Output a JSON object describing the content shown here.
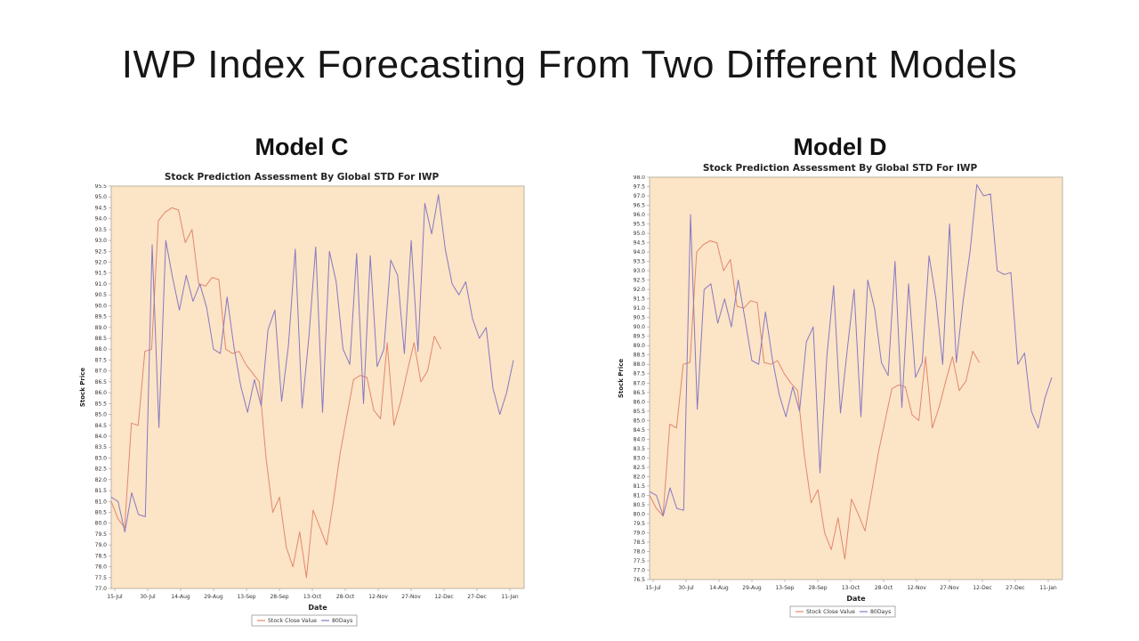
{
  "slide": {
    "title": "IWP Index Forecasting From Two Different Models"
  },
  "colors": {
    "plot_bg": "#fce4c6",
    "plot_border": "#bdb3a3",
    "close_line": "#e1876e",
    "pred_line": "#8778c3",
    "axis_text": "#333333"
  },
  "chart_data": [
    {
      "type": "line",
      "model_label": "Model C",
      "title": "Stock Prediction Assessment By Global STD For IWP",
      "xlabel": "Date",
      "ylabel": "Stock Price",
      "ylim": [
        77.0,
        95.5
      ],
      "ytick_step": 0.5,
      "grid": false,
      "legend_position": "bottom",
      "x_ticks": [
        "15-Jul",
        "30-Jul",
        "14-Aug",
        "29-Aug",
        "13-Sep",
        "28-Sep",
        "13-Oct",
        "28-Oct",
        "12-Nov",
        "27-Nov",
        "12-Dec",
        "27-Dec",
        "11-Jan"
      ],
      "legend": [
        {
          "label": "Stock Close Value",
          "color": "#e1876e"
        },
        {
          "label": "80Days",
          "color": "#8778c3"
        }
      ],
      "series": [
        {
          "name": "Stock Close Value",
          "color": "#e1876e",
          "end_frac": 0.82,
          "values": [
            81.0,
            80.2,
            79.8,
            84.6,
            84.5,
            87.9,
            88.0,
            93.9,
            94.3,
            94.5,
            94.4,
            92.9,
            93.5,
            91.0,
            90.9,
            91.3,
            91.2,
            88.0,
            87.8,
            87.9,
            87.3,
            86.9,
            86.5,
            83.0,
            80.5,
            81.2,
            78.9,
            78.0,
            79.6,
            77.5,
            80.6,
            79.8,
            79.0,
            81.0,
            83.2,
            84.9,
            86.6,
            86.8,
            86.7,
            85.2,
            84.8,
            88.3,
            84.5,
            85.6,
            87.0,
            88.3,
            86.5,
            87.0,
            88.6,
            88.0
          ]
        },
        {
          "name": "80Days",
          "color": "#8778c3",
          "end_frac": 1.0,
          "values": [
            81.2,
            81.0,
            79.6,
            81.4,
            80.4,
            80.3,
            92.8,
            84.4,
            93.0,
            91.3,
            89.8,
            91.4,
            90.2,
            91.0,
            89.9,
            88.0,
            87.8,
            90.4,
            88.1,
            86.3,
            85.1,
            86.6,
            85.4,
            88.9,
            89.8,
            85.6,
            88.2,
            92.6,
            85.3,
            88.6,
            92.7,
            85.1,
            92.5,
            91.1,
            88.0,
            87.3,
            92.4,
            85.5,
            92.3,
            87.2,
            88.0,
            92.1,
            91.4,
            87.8,
            93.0,
            87.9,
            94.7,
            93.3,
            95.1,
            92.6,
            91.0,
            90.5,
            91.1,
            89.4,
            88.5,
            89.0,
            86.2,
            85.0,
            86.0,
            87.5
          ]
        }
      ]
    },
    {
      "type": "line",
      "model_label": "Model D",
      "title": "Stock Prediction Assessment By Global STD For IWP",
      "xlabel": "Date",
      "ylabel": "Stock Price",
      "ylim": [
        76.5,
        98.0
      ],
      "ytick_step": 0.5,
      "grid": false,
      "legend_position": "bottom",
      "x_ticks": [
        "15-Jul",
        "30-Jul",
        "14-Aug",
        "29-Aug",
        "13-Sep",
        "28-Sep",
        "13-Oct",
        "28-Oct",
        "12-Nov",
        "27-Nov",
        "12-Dec",
        "27-Dec",
        "11-Jan"
      ],
      "legend": [
        {
          "label": "Stock Close Value",
          "color": "#e1876e"
        },
        {
          "label": "80Days",
          "color": "#8778c3"
        }
      ],
      "series": [
        {
          "name": "Stock Close Value",
          "color": "#e1876e",
          "end_frac": 0.82,
          "values": [
            81.0,
            80.3,
            79.9,
            84.8,
            84.6,
            88.0,
            88.1,
            94.0,
            94.4,
            94.6,
            94.5,
            93.0,
            93.6,
            91.1,
            91.0,
            91.4,
            91.3,
            88.1,
            88.0,
            88.2,
            87.5,
            87.0,
            86.6,
            83.1,
            80.6,
            81.3,
            79.0,
            78.1,
            79.8,
            77.6,
            80.8,
            80.0,
            79.1,
            81.2,
            83.3,
            85.0,
            86.7,
            86.9,
            86.8,
            85.3,
            85.0,
            88.4,
            84.6,
            85.7,
            87.1,
            88.4,
            86.6,
            87.1,
            88.7,
            88.1
          ]
        },
        {
          "name": "80Days",
          "color": "#8778c3",
          "end_frac": 1.0,
          "values": [
            81.2,
            81.0,
            79.9,
            81.4,
            80.3,
            80.2,
            96.0,
            85.6,
            92.0,
            92.3,
            90.2,
            91.5,
            90.0,
            92.5,
            90.4,
            88.2,
            88.0,
            90.8,
            88.3,
            86.4,
            85.2,
            86.8,
            85.5,
            89.2,
            90.0,
            82.2,
            88.4,
            92.2,
            85.4,
            88.8,
            92.0,
            85.2,
            92.5,
            91.0,
            88.1,
            87.4,
            93.5,
            85.7,
            92.3,
            87.3,
            88.1,
            93.8,
            91.5,
            88.0,
            95.5,
            88.1,
            91.4,
            94.0,
            97.6,
            97.0,
            97.1,
            93.0,
            92.8,
            92.9,
            88.0,
            88.6,
            85.5,
            84.6,
            86.2,
            87.3
          ]
        }
      ]
    }
  ]
}
